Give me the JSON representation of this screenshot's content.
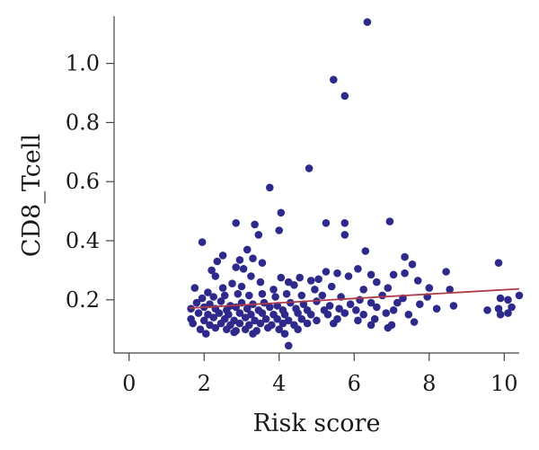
{
  "chart_data": {
    "type": "scatter",
    "title": "",
    "xlabel": "Risk score",
    "ylabel": "CD8_Tcell",
    "xlim": [
      -0.4,
      10.4
    ],
    "ylim": [
      0.02,
      1.16
    ],
    "x_ticks": [
      {
        "value": 0,
        "label": "0"
      },
      {
        "value": 2,
        "label": "2"
      },
      {
        "value": 4,
        "label": "4"
      },
      {
        "value": 6,
        "label": "6"
      },
      {
        "value": 8,
        "label": "8"
      },
      {
        "value": 10,
        "label": "10"
      }
    ],
    "y_ticks": [
      {
        "value": 0.2,
        "label": "0.2"
      },
      {
        "value": 0.4,
        "label": "0.4"
      },
      {
        "value": 0.6,
        "label": "0.6"
      },
      {
        "value": 0.8,
        "label": "0.8"
      },
      {
        "value": 1.0,
        "label": "1.0"
      }
    ],
    "grid": false,
    "point_color": "#2e2a8c",
    "fit_color": "#b03a48",
    "fit_line": {
      "x": [
        1.6,
        10.4
      ],
      "y": [
        0.172,
        0.237
      ]
    },
    "points": [
      [
        6.35,
        1.14
      ],
      [
        5.45,
        0.945
      ],
      [
        5.75,
        0.89
      ],
      [
        4.8,
        0.645
      ],
      [
        3.75,
        0.58
      ],
      [
        4.05,
        0.495
      ],
      [
        6.95,
        0.465
      ],
      [
        2.85,
        0.46
      ],
      [
        3.35,
        0.455
      ],
      [
        5.25,
        0.46
      ],
      [
        5.75,
        0.46
      ],
      [
        4.0,
        0.435
      ],
      [
        3.45,
        0.42
      ],
      [
        5.75,
        0.42
      ],
      [
        1.95,
        0.395
      ],
      [
        3.15,
        0.37
      ],
      [
        6.3,
        0.365
      ],
      [
        2.5,
        0.35
      ],
      [
        7.35,
        0.345
      ],
      [
        2.35,
        0.33
      ],
      [
        2.95,
        0.335
      ],
      [
        3.3,
        0.34
      ],
      [
        3.55,
        0.325
      ],
      [
        9.85,
        0.325
      ],
      [
        2.85,
        0.31
      ],
      [
        3.05,
        0.305
      ],
      [
        7.55,
        0.32
      ],
      [
        2.2,
        0.3
      ],
      [
        5.25,
        0.295
      ],
      [
        6.1,
        0.305
      ],
      [
        8.45,
        0.295
      ],
      [
        2.3,
        0.28
      ],
      [
        3.25,
        0.28
      ],
      [
        4.05,
        0.275
      ],
      [
        4.55,
        0.275
      ],
      [
        5.55,
        0.29
      ],
      [
        6.45,
        0.285
      ],
      [
        7.05,
        0.285
      ],
      [
        7.35,
        0.29
      ],
      [
        1.75,
        0.24
      ],
      [
        2.75,
        0.255
      ],
      [
        3.5,
        0.26
      ],
      [
        4.25,
        0.26
      ],
      [
        4.85,
        0.265
      ],
      [
        5.05,
        0.27
      ],
      [
        5.85,
        0.28
      ],
      [
        6.6,
        0.26
      ],
      [
        7.7,
        0.265
      ],
      [
        2.1,
        0.225
      ],
      [
        2.5,
        0.24
      ],
      [
        3.0,
        0.245
      ],
      [
        3.85,
        0.235
      ],
      [
        4.4,
        0.25
      ],
      [
        4.95,
        0.235
      ],
      [
        5.4,
        0.245
      ],
      [
        6.25,
        0.235
      ],
      [
        6.9,
        0.24
      ],
      [
        8.0,
        0.24
      ],
      [
        8.55,
        0.235
      ],
      [
        10.4,
        0.215
      ],
      [
        1.95,
        0.205
      ],
      [
        2.25,
        0.21
      ],
      [
        2.55,
        0.215
      ],
      [
        2.9,
        0.22
      ],
      [
        3.2,
        0.215
      ],
      [
        3.55,
        0.22
      ],
      [
        3.9,
        0.21
      ],
      [
        4.2,
        0.22
      ],
      [
        4.6,
        0.215
      ],
      [
        5.15,
        0.215
      ],
      [
        5.65,
        0.21
      ],
      [
        6.15,
        0.2
      ],
      [
        6.75,
        0.215
      ],
      [
        7.3,
        0.205
      ],
      [
        7.95,
        0.21
      ],
      [
        9.9,
        0.205
      ],
      [
        10.1,
        0.2
      ],
      [
        1.8,
        0.19
      ],
      [
        2.15,
        0.185
      ],
      [
        2.45,
        0.195
      ],
      [
        2.7,
        0.18
      ],
      [
        3.0,
        0.19
      ],
      [
        3.3,
        0.185
      ],
      [
        3.6,
        0.19
      ],
      [
        3.95,
        0.18
      ],
      [
        4.3,
        0.19
      ],
      [
        4.65,
        0.185
      ],
      [
        5.0,
        0.195
      ],
      [
        5.35,
        0.18
      ],
      [
        5.9,
        0.185
      ],
      [
        6.45,
        0.19
      ],
      [
        7.15,
        0.19
      ],
      [
        7.75,
        0.185
      ],
      [
        8.65,
        0.18
      ],
      [
        9.85,
        0.17
      ],
      [
        1.65,
        0.17
      ],
      [
        2.0,
        0.175
      ],
      [
        2.3,
        0.17
      ],
      [
        2.6,
        0.165
      ],
      [
        2.85,
        0.175
      ],
      [
        3.15,
        0.17
      ],
      [
        3.45,
        0.165
      ],
      [
        3.75,
        0.175
      ],
      [
        4.1,
        0.165
      ],
      [
        4.45,
        0.17
      ],
      [
        4.75,
        0.165
      ],
      [
        5.2,
        0.165
      ],
      [
        5.6,
        0.17
      ],
      [
        6.05,
        0.165
      ],
      [
        6.6,
        0.175
      ],
      [
        7.05,
        0.165
      ],
      [
        8.2,
        0.17
      ],
      [
        9.55,
        0.165
      ],
      [
        10.2,
        0.175
      ],
      [
        1.85,
        0.155
      ],
      [
        2.1,
        0.15
      ],
      [
        2.4,
        0.155
      ],
      [
        2.65,
        0.15
      ],
      [
        2.95,
        0.155
      ],
      [
        3.25,
        0.15
      ],
      [
        3.55,
        0.155
      ],
      [
        3.85,
        0.15
      ],
      [
        4.15,
        0.15
      ],
      [
        4.5,
        0.155
      ],
      [
        4.85,
        0.15
      ],
      [
        5.3,
        0.15
      ],
      [
        5.75,
        0.155
      ],
      [
        6.25,
        0.15
      ],
      [
        6.85,
        0.155
      ],
      [
        7.45,
        0.15
      ],
      [
        9.9,
        0.15
      ],
      [
        10.1,
        0.155
      ],
      [
        1.65,
        0.135
      ],
      [
        2.0,
        0.13
      ],
      [
        2.25,
        0.14
      ],
      [
        2.55,
        0.135
      ],
      [
        2.8,
        0.13
      ],
      [
        3.1,
        0.14
      ],
      [
        3.35,
        0.13
      ],
      [
        3.65,
        0.135
      ],
      [
        3.95,
        0.135
      ],
      [
        4.25,
        0.13
      ],
      [
        4.6,
        0.135
      ],
      [
        5.0,
        0.13
      ],
      [
        5.55,
        0.135
      ],
      [
        6.1,
        0.13
      ],
      [
        6.55,
        0.135
      ],
      [
        7.6,
        0.125
      ],
      [
        1.7,
        0.12
      ],
      [
        2.15,
        0.115
      ],
      [
        2.45,
        0.12
      ],
      [
        2.7,
        0.115
      ],
      [
        2.95,
        0.12
      ],
      [
        3.2,
        0.115
      ],
      [
        3.5,
        0.12
      ],
      [
        3.8,
        0.115
      ],
      [
        4.1,
        0.12
      ],
      [
        4.4,
        0.115
      ],
      [
        4.75,
        0.12
      ],
      [
        5.45,
        0.12
      ],
      [
        6.45,
        0.115
      ],
      [
        7.0,
        0.115
      ],
      [
        1.9,
        0.1
      ],
      [
        2.3,
        0.105
      ],
      [
        2.6,
        0.1
      ],
      [
        2.85,
        0.095
      ],
      [
        3.1,
        0.1
      ],
      [
        3.4,
        0.095
      ],
      [
        3.7,
        0.105
      ],
      [
        4.0,
        0.1
      ],
      [
        4.5,
        0.1
      ],
      [
        6.9,
        0.105
      ],
      [
        2.05,
        0.085
      ],
      [
        2.8,
        0.09
      ],
      [
        3.3,
        0.085
      ],
      [
        4.15,
        0.085
      ],
      [
        4.25,
        0.045
      ]
    ]
  }
}
